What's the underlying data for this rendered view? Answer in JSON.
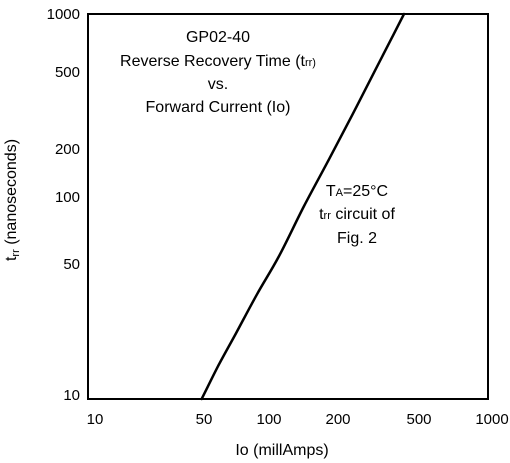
{
  "chart_data": {
    "type": "line",
    "x_scale": "log",
    "y_scale": "log",
    "xlim": [
      10,
      1000
    ],
    "ylim": [
      10,
      1000
    ],
    "grid": false,
    "x_ticks": [
      10,
      50,
      100,
      200,
      500,
      1000
    ],
    "x_tick_labels": [
      "10",
      "50",
      "100",
      "200",
      "500",
      "1000"
    ],
    "y_ticks": [
      10,
      50,
      100,
      200,
      500,
      1000
    ],
    "y_tick_labels": [
      "10",
      "50",
      "100",
      "200",
      "500",
      "1000"
    ],
    "xlabel": "Io (millAmps)",
    "ylabel_main": "t",
    "ylabel_sub": "rr",
    "ylabel_rest": " (nanoseconds)",
    "title_line1": "GP02-40",
    "title_line2_main": "Reverse Recovery Time (t",
    "title_line2_sub": "rr)",
    "title_line3": "vs.",
    "title_line4": "Forward Current (Io)",
    "annotation_line1_main": "T",
    "annotation_line1_sub": "A",
    "annotation_line1_rest": "=25°C",
    "annotation_line2_main": "t",
    "annotation_line2_sub": "rr",
    "annotation_line2_rest": " circuit of",
    "annotation_line3": "Fig. 2",
    "series": [
      {
        "x": [
          37,
          45,
          55,
          70,
          90,
          120,
          160,
          210,
          270,
          330,
          380
        ],
        "y": [
          10,
          15,
          22,
          35,
          55,
          100,
          175,
          300,
          500,
          750,
          1000
        ]
      }
    ]
  }
}
